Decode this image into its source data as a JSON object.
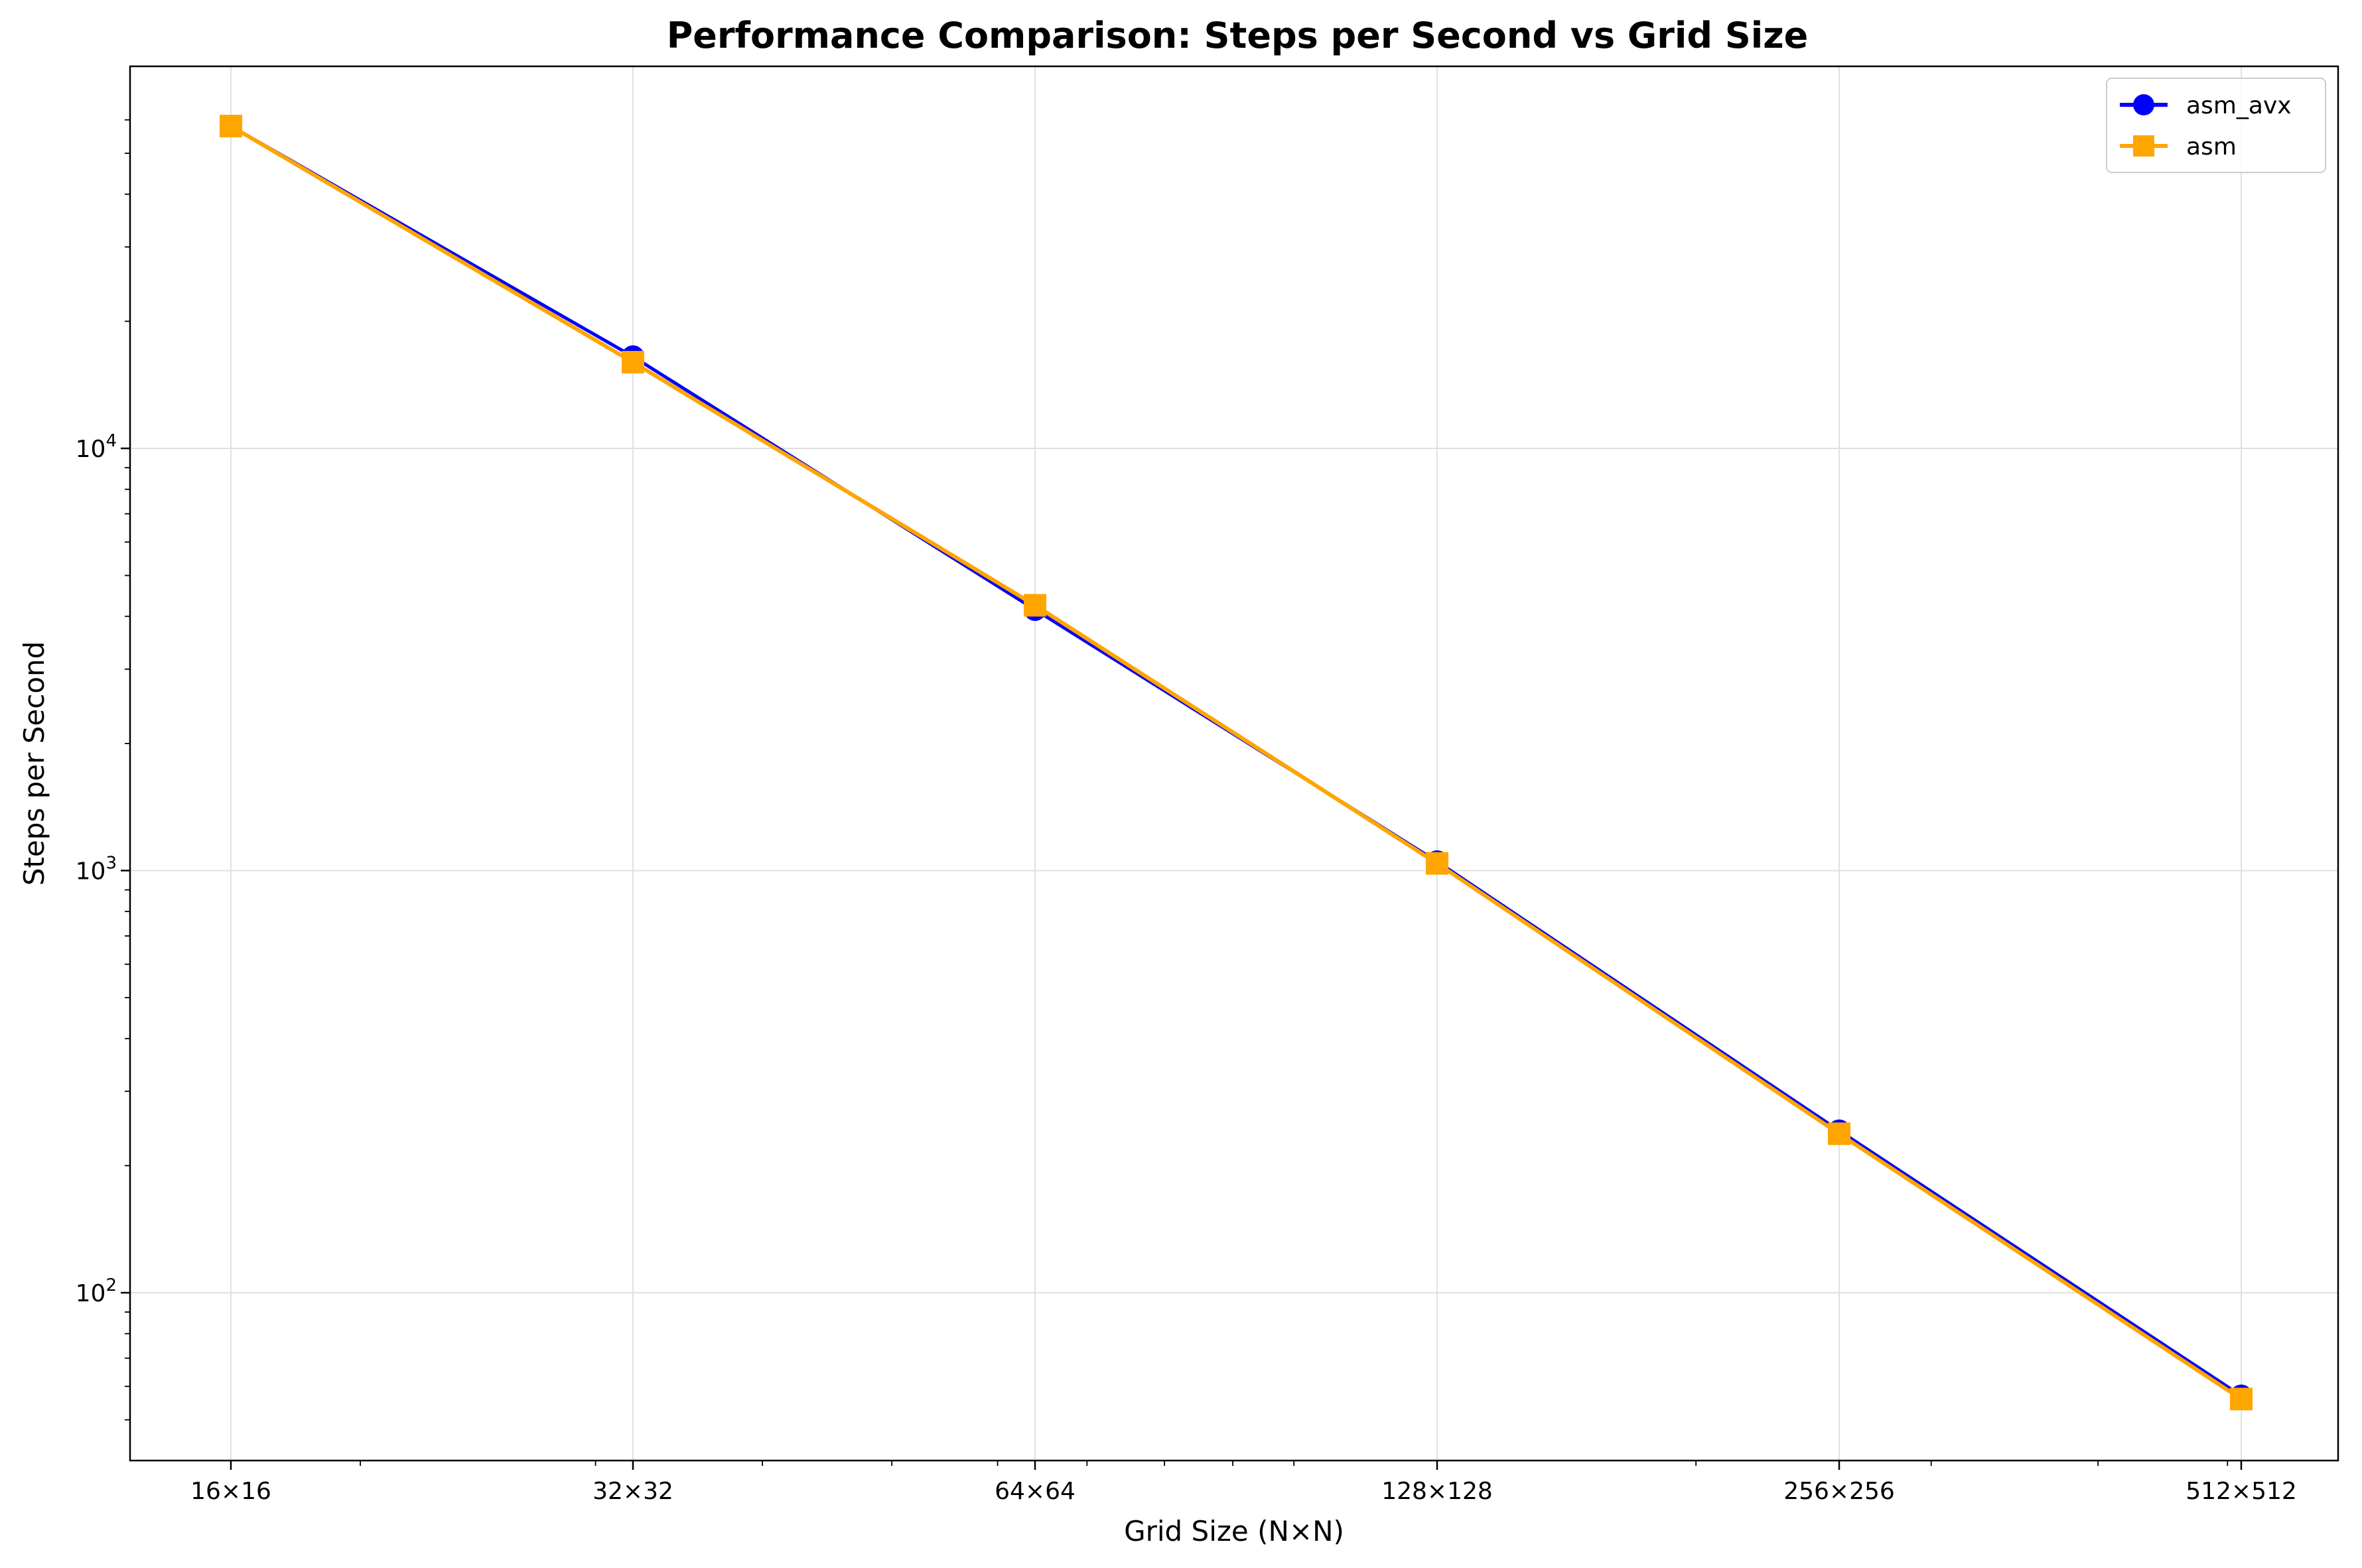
{
  "chart_data": {
    "type": "line",
    "title": "Performance Comparison: Steps per Second vs Grid Size",
    "xlabel": "Grid Size (N×N)",
    "ylabel": "Steps per Second",
    "x_scale": "log2",
    "y_scale": "log10",
    "categories": [
      "16×16",
      "32×32",
      "64×64",
      "128×128",
      "256×256",
      "512×512"
    ],
    "x": [
      16,
      32,
      64,
      128,
      256,
      512
    ],
    "ylim": [
      43,
      68000
    ],
    "yticks": [
      {
        "base": "10",
        "exp": "2",
        "value": 100
      },
      {
        "base": "10",
        "exp": "3",
        "value": 1000
      },
      {
        "base": "10",
        "exp": "4",
        "value": 10000
      }
    ],
    "grid": true,
    "legend_position": "top-right",
    "series": [
      {
        "name": "asm_avx",
        "color": "#0000ff",
        "marker": "circle",
        "values": [
          58000,
          16500,
          4150,
          1050,
          242,
          57
        ]
      },
      {
        "name": "asm",
        "color": "#ffa500",
        "marker": "square",
        "values": [
          58000,
          16000,
          4250,
          1040,
          238,
          56
        ]
      }
    ]
  }
}
